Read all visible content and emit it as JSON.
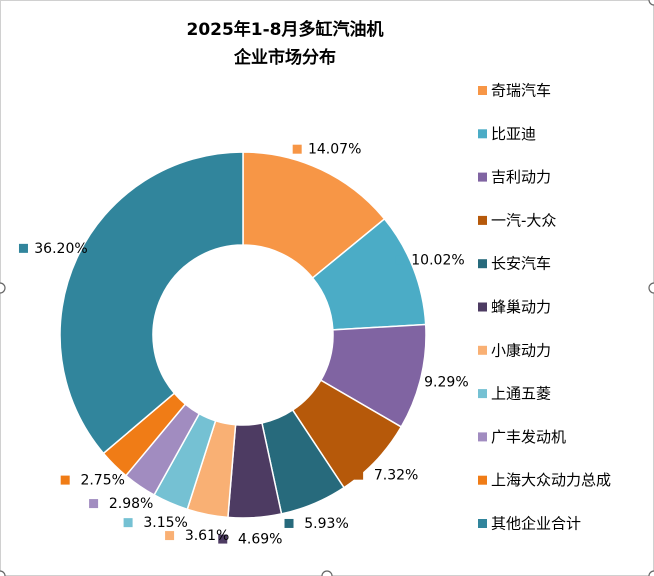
{
  "chart_data": {
    "type": "donut",
    "title": [
      "2025年1-8月多缸汽油机",
      "企业市场分布"
    ],
    "categories": [
      "奇瑞汽车",
      "比亚迪",
      "吉利动力",
      "一汽-大众",
      "长安汽车",
      "蜂巢动力",
      "小康动力",
      "上通五菱",
      "广丰发动机",
      "上海大众动力总成",
      "其他企业合计"
    ],
    "values": [
      14.07,
      10.02,
      9.29,
      7.32,
      5.93,
      4.69,
      3.61,
      3.15,
      2.98,
      2.75,
      36.2
    ],
    "value_labels": [
      "14.07%",
      "10.02%",
      "9.29%",
      "7.32%",
      "5.93%",
      "4.69%",
      "3.61%",
      "3.15%",
      "2.98%",
      "2.75%",
      "36.20%"
    ],
    "colors": [
      "#f79646",
      "#4bacc6",
      "#8064a2",
      "#b6590a",
      "#276a7c",
      "#4d3b62",
      "#f9b074",
      "#75c1d3",
      "#a18cc0",
      "#f07c16",
      "#31859c"
    ],
    "legend": "right"
  }
}
